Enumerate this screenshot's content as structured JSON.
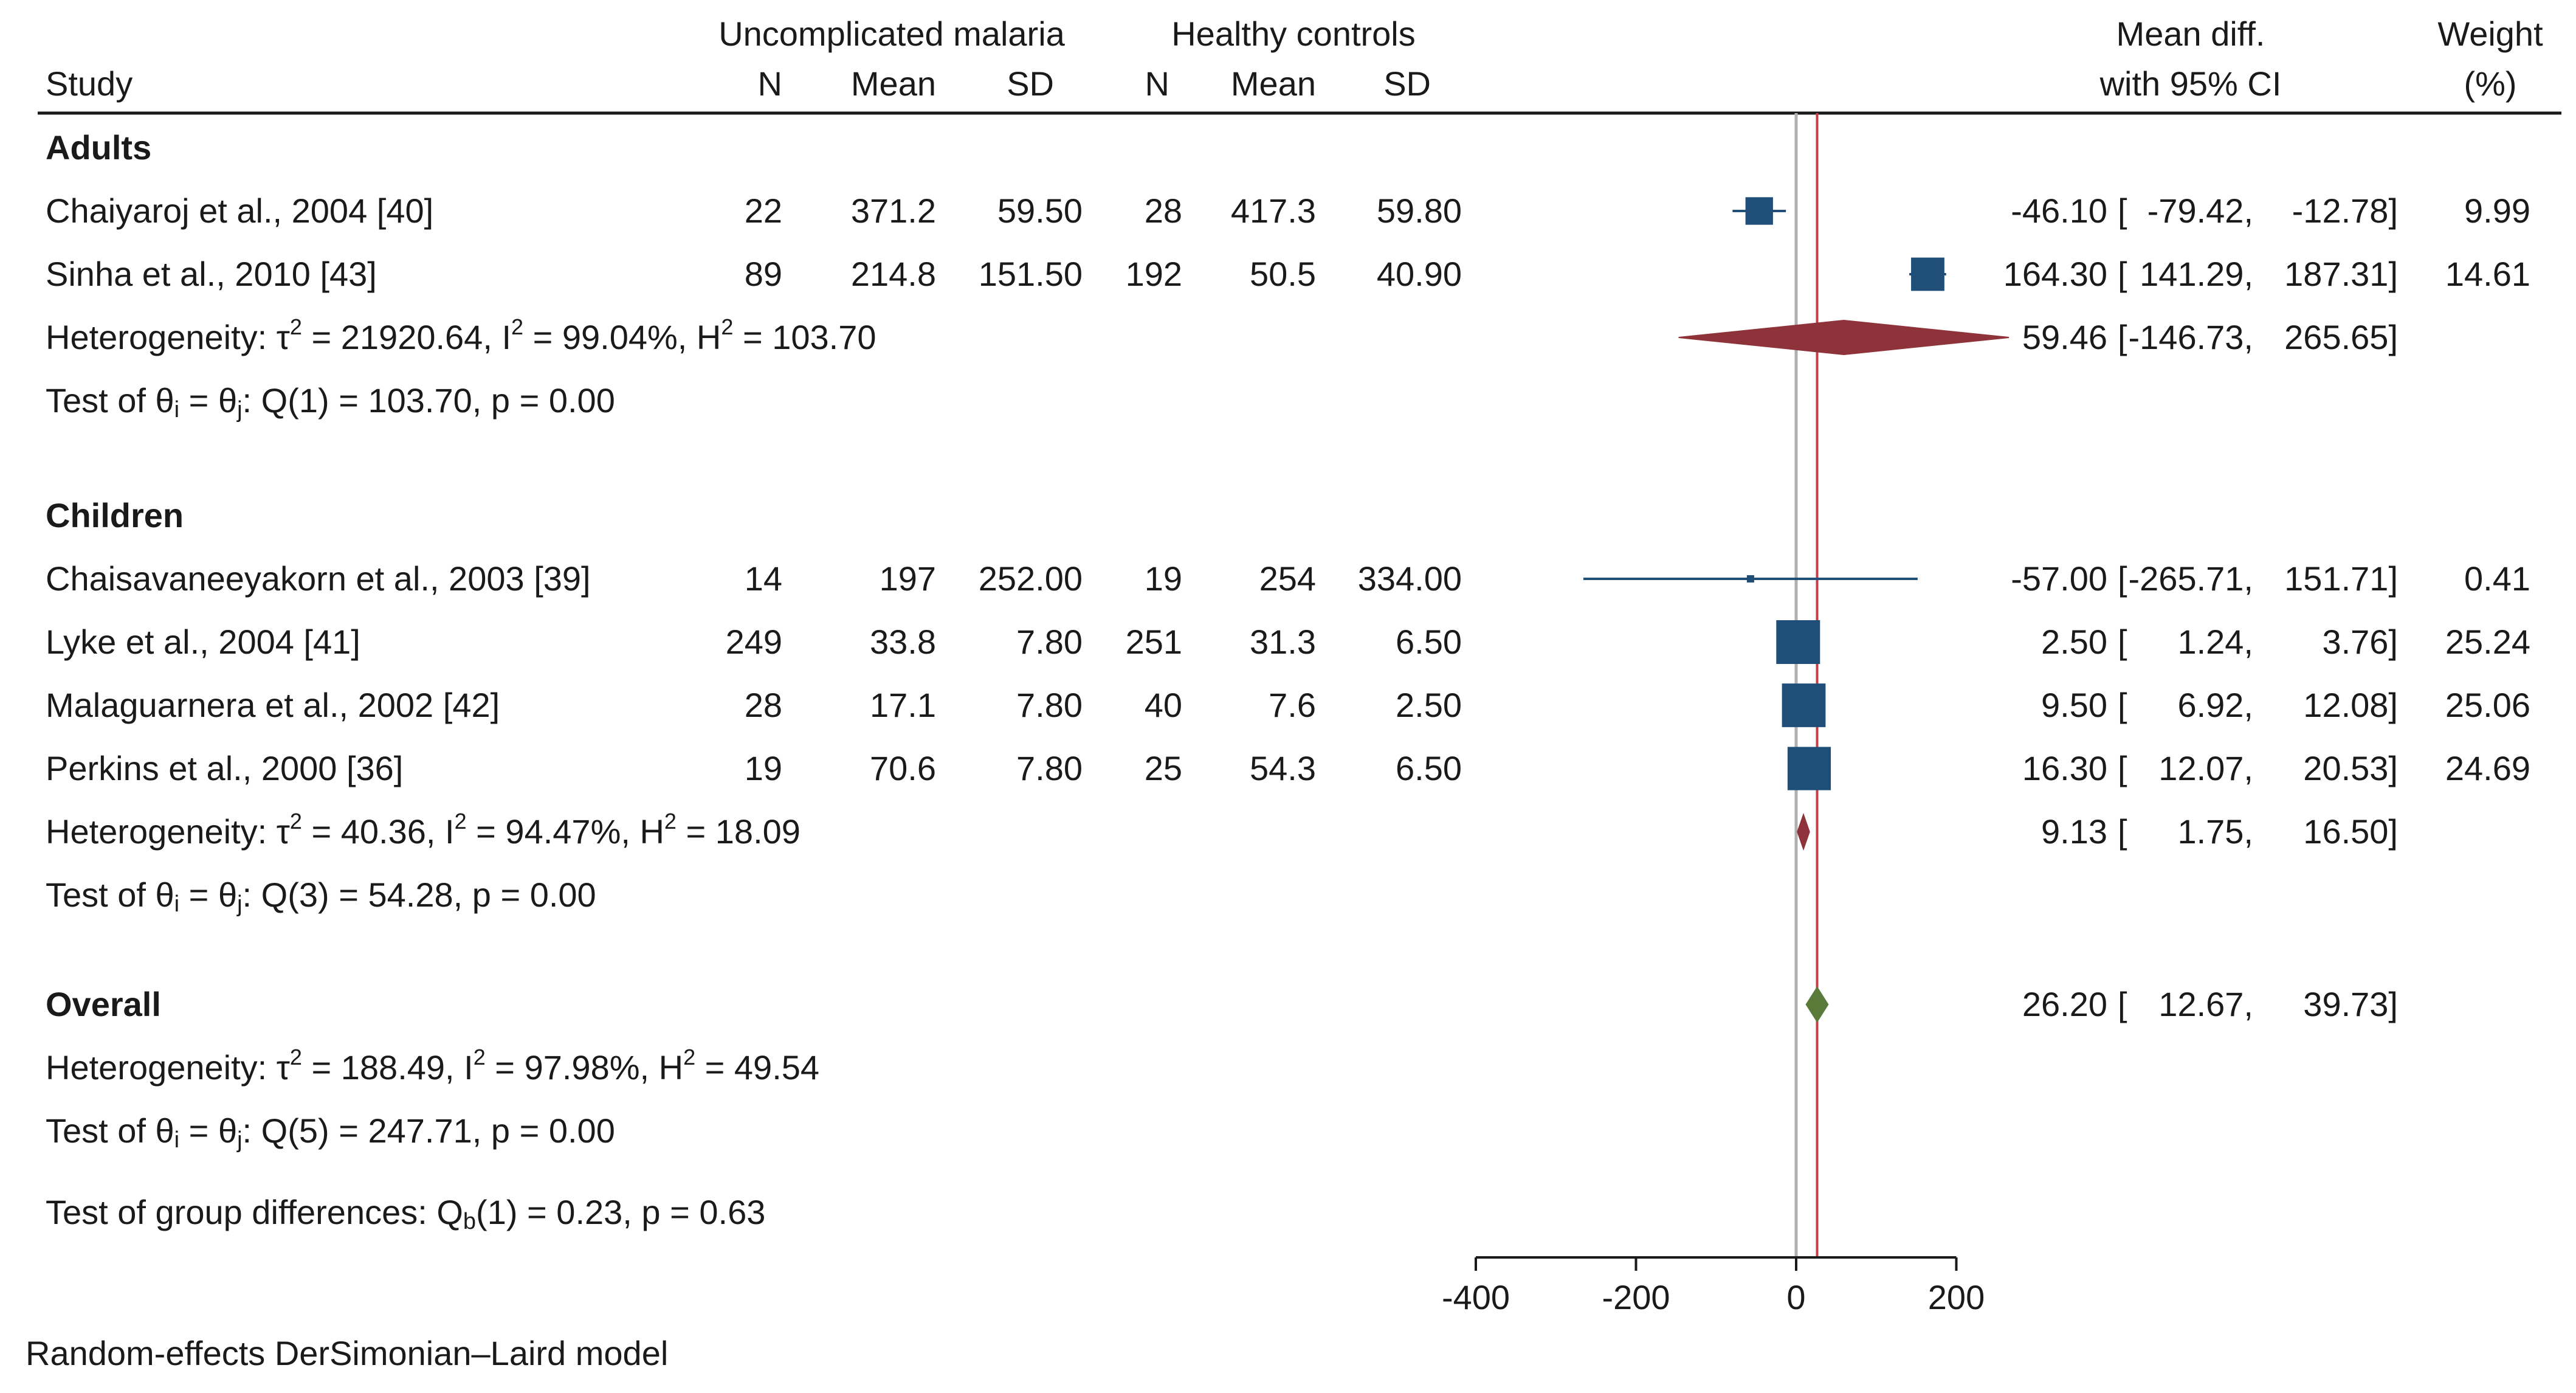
{
  "chart_data": {
    "type": "forest",
    "header": {
      "study_label": "Study",
      "group1_label": "Uncomplicated malaria",
      "group2_label": "Healthy controls",
      "n_label": "N",
      "mean_label": "Mean",
      "sd_label": "SD",
      "effect_label_line1": "Mean diff.",
      "effect_label_line2": "with 95% CI",
      "weight_label_line1": "Weight",
      "weight_label_line2": "(%)"
    },
    "groups": [
      {
        "name": "Adults",
        "studies": [
          {
            "label": "Chaiyaroj et al., 2004 [40]",
            "n1": "22",
            "mean1": "371.2",
            "sd1": "59.50",
            "n2": "28",
            "mean2": "417.3",
            "sd2": "59.80",
            "md": -46.1,
            "lo": -79.42,
            "hi": -12.78,
            "weight": 9.99,
            "md_text": "-46.10",
            "lo_text": "-79.42,",
            "hi_text": "-12.78]",
            "weight_text": "9.99"
          },
          {
            "label": "Sinha et al., 2010 [43]",
            "n1": "89",
            "mean1": "214.8",
            "sd1": "151.50",
            "n2": "192",
            "mean2": "50.5",
            "sd2": "40.90",
            "md": 164.3,
            "lo": 141.29,
            "hi": 187.31,
            "weight": 14.61,
            "md_text": "164.30",
            "lo_text": "141.29,",
            "hi_text": "187.31]",
            "weight_text": "14.61"
          }
        ],
        "pooled": {
          "md": 59.46,
          "lo": -146.73,
          "hi": 265.65,
          "md_text": "59.46",
          "lo_text": "-146.73,",
          "hi_text": "265.65]",
          "color": "#8e3339"
        },
        "heterogeneity": {
          "prefix": "Heterogeneity: τ",
          "tau_sup": "2",
          "tau_val": " = 21920.64, I",
          "i_sup": "2",
          "i_val": " = 99.04%, H",
          "h_sup": "2",
          "h_val": " = 103.70"
        },
        "test": {
          "prefix": "Test of θ",
          "sub_i": "i",
          "mid": " = θ",
          "sub_j": "j",
          "rest": ": Q(1) = 103.70, p = 0.00"
        }
      },
      {
        "name": "Children",
        "studies": [
          {
            "label": "Chaisavaneeyakorn et al., 2003 [39]",
            "n1": "14",
            "mean1": "197",
            "sd1": "252.00",
            "n2": "19",
            "mean2": "254",
            "sd2": "334.00",
            "md": -57.0,
            "lo": -265.71,
            "hi": 151.71,
            "weight": 0.41,
            "md_text": "-57.00",
            "lo_text": "-265.71,",
            "hi_text": "151.71]",
            "weight_text": "0.41"
          },
          {
            "label": "Lyke et al., 2004 [41]",
            "n1": "249",
            "mean1": "33.8",
            "sd1": "7.80",
            "n2": "251",
            "mean2": "31.3",
            "sd2": "6.50",
            "md": 2.5,
            "lo": 1.24,
            "hi": 3.76,
            "weight": 25.24,
            "md_text": "2.50",
            "lo_text": "1.24,",
            "hi_text": "3.76]",
            "weight_text": "25.24"
          },
          {
            "label": "Malaguarnera et al., 2002 [42]",
            "n1": "28",
            "mean1": "17.1",
            "sd1": "7.80",
            "n2": "40",
            "mean2": "7.6",
            "sd2": "2.50",
            "md": 9.5,
            "lo": 6.92,
            "hi": 12.08,
            "weight": 25.06,
            "md_text": "9.50",
            "lo_text": "6.92,",
            "hi_text": "12.08]",
            "weight_text": "25.06"
          },
          {
            "label": "Perkins et al., 2000 [36]",
            "n1": "19",
            "mean1": "70.6",
            "sd1": "7.80",
            "n2": "25",
            "mean2": "54.3",
            "sd2": "6.50",
            "md": 16.3,
            "lo": 12.07,
            "hi": 20.53,
            "weight": 24.69,
            "md_text": "16.30",
            "lo_text": "12.07,",
            "hi_text": "20.53]",
            "weight_text": "24.69"
          }
        ],
        "pooled": {
          "md": 9.13,
          "lo": 1.75,
          "hi": 16.5,
          "md_text": "9.13",
          "lo_text": "1.75,",
          "hi_text": "16.50]",
          "color": "#8e3339"
        },
        "heterogeneity": {
          "prefix": "Heterogeneity: τ",
          "tau_sup": "2",
          "tau_val": " = 40.36, I",
          "i_sup": "2",
          "i_val": " = 94.47%, H",
          "h_sup": "2",
          "h_val": " = 18.09"
        },
        "test": {
          "prefix": "Test of θ",
          "sub_i": "i",
          "mid": " = θ",
          "sub_j": "j",
          "rest": ": Q(3) = 54.28, p = 0.00"
        }
      }
    ],
    "overall": {
      "name": "Overall",
      "md": 26.2,
      "lo": 12.67,
      "hi": 39.73,
      "md_text": "26.20",
      "lo_text": "12.67,",
      "hi_text": "39.73]",
      "color": "#5a7a3a",
      "heterogeneity": {
        "prefix": "Heterogeneity: τ",
        "tau_sup": "2",
        "tau_val": " = 188.49, I",
        "i_sup": "2",
        "i_val": " = 97.98%, H",
        "h_sup": "2",
        "h_val": " = 49.54"
      },
      "test": {
        "prefix": "Test of θ",
        "sub_i": "i",
        "mid": " = θ",
        "sub_j": "j",
        "rest": ": Q(5) = 247.71, p = 0.00"
      },
      "group_diff": {
        "prefix": "Test of group differences: Q",
        "sub": "b",
        "rest": "(1) = 0.23, p = 0.63"
      }
    },
    "x_axis": {
      "ticks": [
        -400,
        -200,
        0,
        200
      ],
      "tick_labels": [
        "-400",
        "-200",
        "0",
        "200"
      ],
      "range": [
        -400,
        200
      ],
      "null_line": 0,
      "null_line_color": "#b0b0b0",
      "overall_line_color": "#c0404a"
    },
    "study_marker_color": "#1f4e79",
    "ci_line_color": "#1f4e79",
    "footnote": "Random-effects DerSimonian–Laird model"
  }
}
